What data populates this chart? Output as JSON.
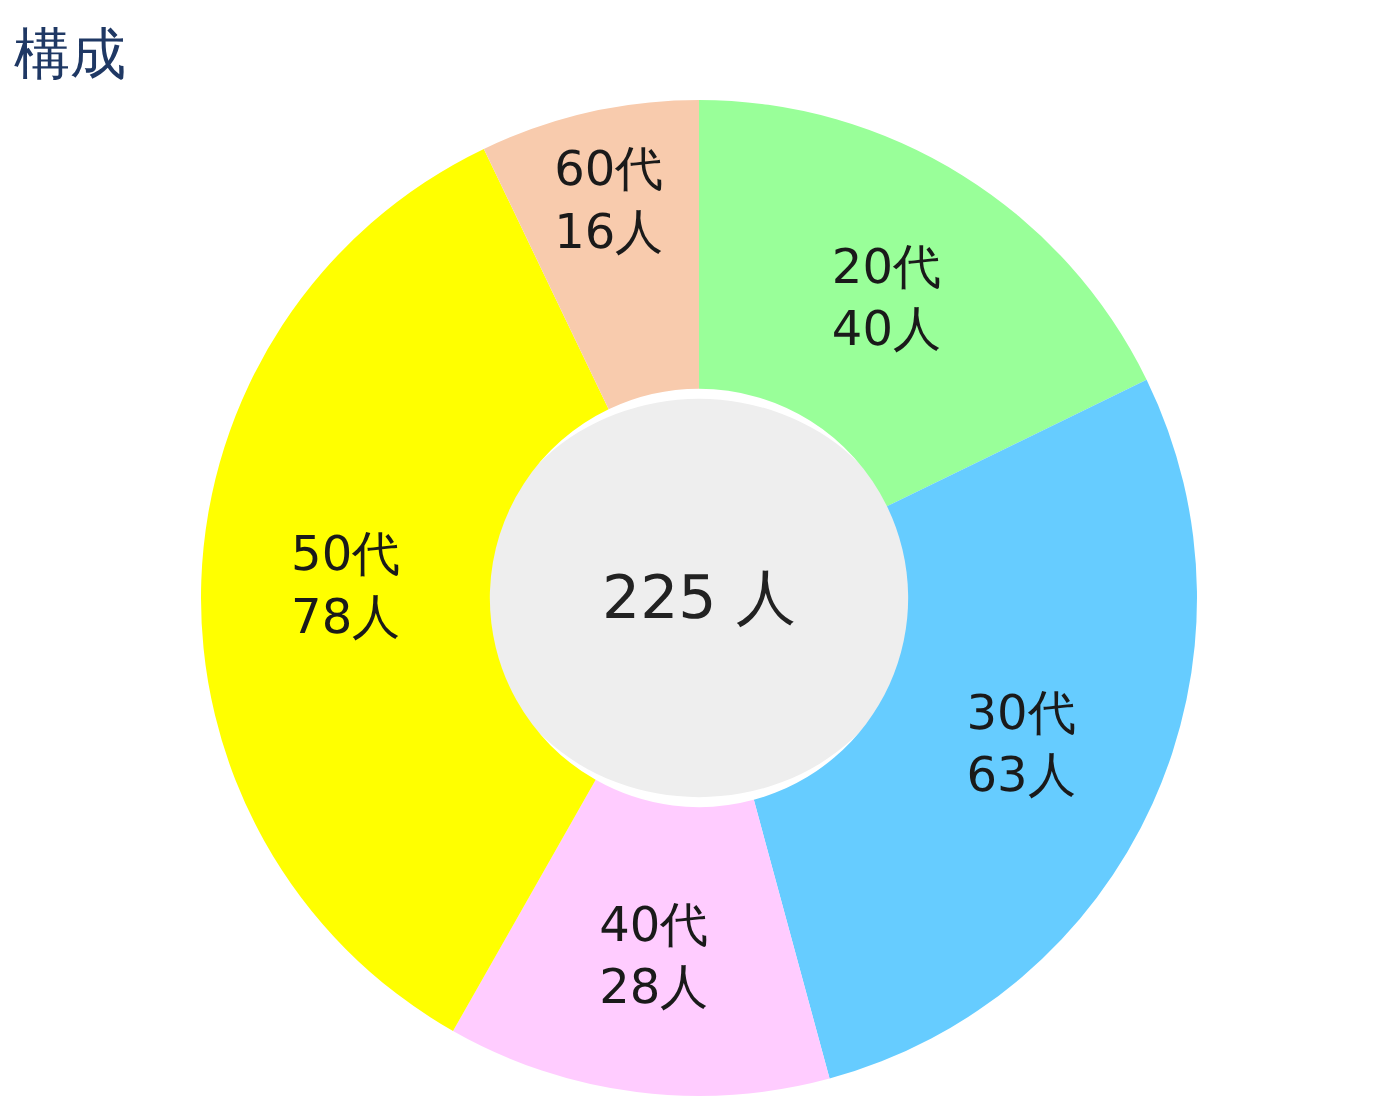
{
  "chart_data": {
    "type": "donut",
    "title": "構成",
    "categories": [
      "20代",
      "30代",
      "40代",
      "50代",
      "60代"
    ],
    "values": [
      40,
      63,
      28,
      78,
      16
    ],
    "colors": [
      "#99ff99",
      "#66ccff",
      "#ffccff",
      "#ffff00",
      "#f8cbad"
    ],
    "value_labels": [
      "40人",
      "63人",
      "28人",
      "78人",
      "16人"
    ],
    "annotations": [
      "225 人"
    ],
    "legend": false
  }
}
